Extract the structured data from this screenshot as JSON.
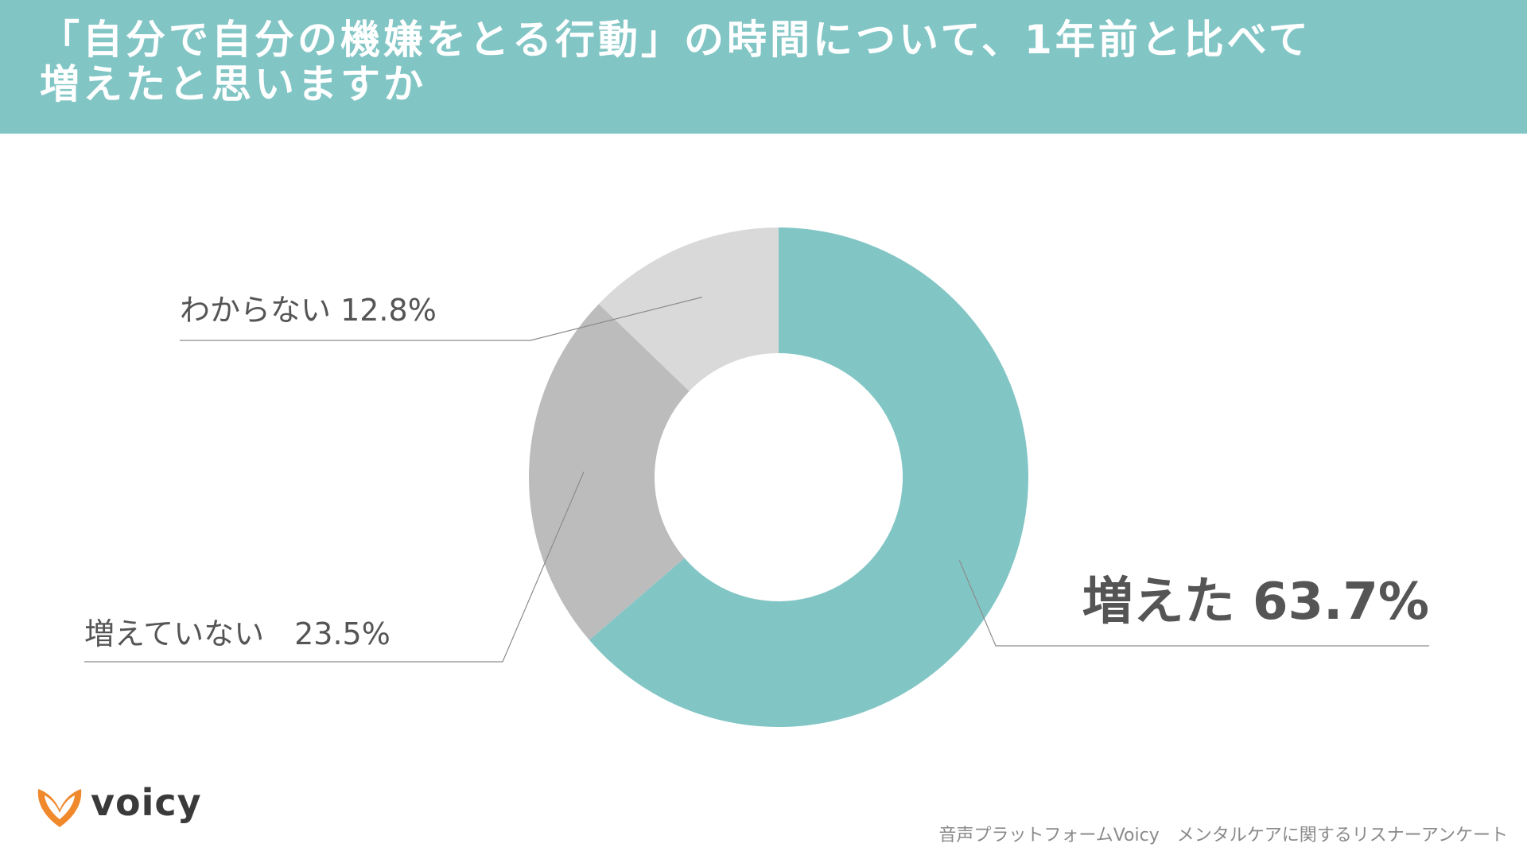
{
  "header": {
    "title_line1": "「自分で自分の機嫌をとる行動」の時間について、1年前と比べて",
    "title_line2": "増えたと思いますか"
  },
  "chart_data": {
    "type": "pie",
    "variant": "donut",
    "title": "「自分で自分の機嫌をとる行動」の時間について、1年前と比べて増えたと思いますか",
    "slices": [
      {
        "label": "増えた",
        "value": 63.7,
        "display": "増えた 63.7%",
        "color": "#82c5c5"
      },
      {
        "label": "増えていない",
        "value": 23.5,
        "display": "増えていない　23.5%",
        "color": "#bcbcbc"
      },
      {
        "label": "わからない",
        "value": 12.8,
        "display": "わからない 12.8%",
        "color": "#d9d9d9"
      }
    ],
    "start_angle": "12 o'clock",
    "direction": "clockwise"
  },
  "footer": {
    "logo_text": "voicy",
    "source": "音声プラットフォームVoicy　メンタルケアに関するリスナーアンケート"
  },
  "colors": {
    "header_bg": "#82c5c5",
    "label_text": "#555555",
    "leader_line": "#8c8c8c",
    "logo_orange": "#f0882c"
  }
}
